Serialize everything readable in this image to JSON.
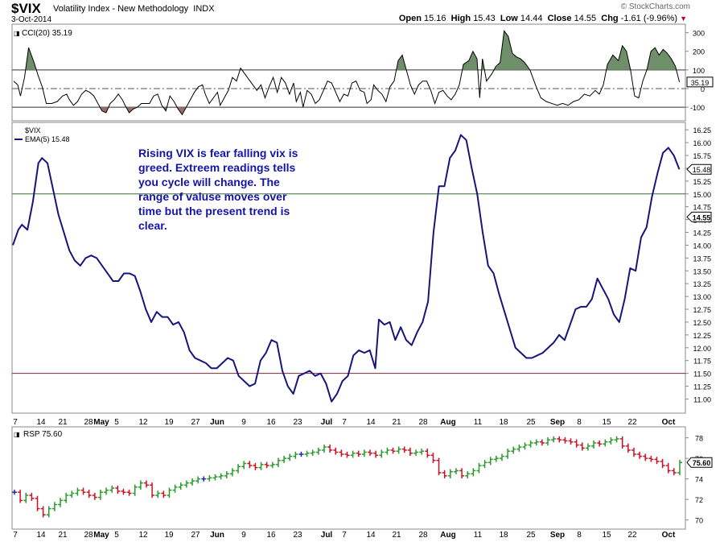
{
  "header": {
    "symbol": "$VIX",
    "name": "Volatility Index - New Methodology",
    "exchange": "INDX",
    "date": "3-Oct-2014",
    "brand": "© StockCharts.com",
    "open_label": "Open",
    "open": "15.16",
    "high_label": "High",
    "high": "15.43",
    "low_label": "Low",
    "low": "14.44",
    "close_label": "Close",
    "close": "14.55",
    "chg_label": "Chg",
    "chg": "-1.61 (-9.96%)",
    "chg_color": "#c0002a"
  },
  "annotation": "Rising VIX is fear falling vix is greed. Extreem readings tells you cycle will change. The range of valuse moves over time but the present trend is clear.",
  "x_axis": {
    "ticks": [
      "7",
      "14",
      "21",
      "28",
      "May",
      "5",
      "12",
      "19",
      "27",
      "Jun",
      "9",
      "16",
      "23",
      "Jul",
      "7",
      "14",
      "21",
      "28",
      "Aug",
      "11",
      "18",
      "25",
      "Sep",
      "8",
      "15",
      "22",
      "Oct"
    ],
    "bold": [
      "May",
      "Jun",
      "Jul",
      "Aug",
      "Sep",
      "Oct"
    ]
  },
  "chart_data": [
    {
      "type": "line",
      "panel": "CCI",
      "title": "CCI(20) 35.19",
      "series": [
        {
          "name": "CCI(20)",
          "color": "#000000"
        }
      ],
      "ylim": [
        -130,
        320
      ],
      "yticks": [
        300,
        200,
        100,
        0,
        -100
      ],
      "upper_line": 100,
      "lower_line": -100,
      "last_value": "35.19",
      "fill_above_color": "#6e8f6a",
      "fill_below_color": "#9a6e6e",
      "values": [
        [
          0,
          40
        ],
        [
          3,
          20
        ],
        [
          5,
          -40
        ],
        [
          8,
          60
        ],
        [
          11,
          220
        ],
        [
          15,
          140
        ],
        [
          18,
          70
        ],
        [
          21,
          10
        ],
        [
          24,
          -80
        ],
        [
          28,
          -80
        ],
        [
          32,
          -70
        ],
        [
          36,
          -40
        ],
        [
          39,
          -30
        ],
        [
          41,
          -60
        ],
        [
          44,
          -90
        ],
        [
          47,
          -70
        ],
        [
          50,
          -30
        ],
        [
          53,
          -10
        ],
        [
          56,
          -20
        ],
        [
          59,
          -40
        ],
        [
          62,
          -80
        ],
        [
          65,
          -120
        ],
        [
          68,
          -130
        ],
        [
          71,
          -80
        ],
        [
          74,
          -60
        ],
        [
          77,
          -30
        ],
        [
          80,
          -60
        ],
        [
          82,
          -90
        ],
        [
          85,
          -130
        ],
        [
          88,
          -110
        ],
        [
          91,
          -100
        ],
        [
          94,
          -80
        ],
        [
          97,
          -80
        ],
        [
          100,
          -80
        ],
        [
          103,
          -40
        ],
        [
          106,
          -30
        ],
        [
          109,
          -90
        ],
        [
          112,
          -120
        ],
        [
          115,
          -40
        ],
        [
          118,
          -70
        ],
        [
          121,
          -110
        ],
        [
          124,
          -140
        ],
        [
          127,
          -100
        ],
        [
          130,
          -60
        ],
        [
          133,
          -20
        ],
        [
          136,
          10
        ],
        [
          139,
          20
        ],
        [
          141,
          -30
        ],
        [
          144,
          -80
        ],
        [
          147,
          -50
        ],
        [
          150,
          -20
        ],
        [
          152,
          -90
        ],
        [
          155,
          -50
        ],
        [
          158,
          -10
        ],
        [
          161,
          60
        ],
        [
          164,
          40
        ],
        [
          167,
          110
        ],
        [
          170,
          80
        ],
        [
          173,
          50
        ],
        [
          176,
          20
        ],
        [
          179,
          -10
        ],
        [
          182,
          20
        ],
        [
          185,
          -50
        ],
        [
          188,
          10
        ],
        [
          191,
          60
        ],
        [
          194,
          -20
        ],
        [
          197,
          60
        ],
        [
          200,
          30
        ],
        [
          203,
          -30
        ],
        [
          206,
          30
        ],
        [
          208,
          -70
        ],
        [
          211,
          -20
        ],
        [
          213,
          -100
        ],
        [
          216,
          -10
        ],
        [
          219,
          -30
        ],
        [
          222,
          -80
        ],
        [
          225,
          -60
        ],
        [
          228,
          -10
        ],
        [
          231,
          40
        ],
        [
          234,
          30
        ],
        [
          237,
          -20
        ],
        [
          240,
          -70
        ],
        [
          243,
          -30
        ],
        [
          246,
          -40
        ],
        [
          249,
          30
        ],
        [
          252,
          40
        ],
        [
          255,
          -10
        ],
        [
          258,
          -20
        ],
        [
          260,
          -80
        ],
        [
          263,
          -60
        ],
        [
          265,
          20
        ],
        [
          268,
          -10
        ],
        [
          271,
          -30
        ],
        [
          274,
          -70
        ],
        [
          277,
          10
        ],
        [
          280,
          40
        ],
        [
          283,
          150
        ],
        [
          286,
          180
        ],
        [
          289,
          100
        ],
        [
          292,
          20
        ],
        [
          295,
          -30
        ],
        [
          298,
          20
        ],
        [
          301,
          40
        ],
        [
          304,
          40
        ],
        [
          307,
          -10
        ],
        [
          310,
          -80
        ],
        [
          313,
          -20
        ],
        [
          316,
          -10
        ],
        [
          319,
          -40
        ],
        [
          322,
          -60
        ],
        [
          325,
          -30
        ],
        [
          328,
          20
        ],
        [
          331,
          130
        ],
        [
          335,
          150
        ],
        [
          338,
          200
        ],
        [
          341,
          160
        ],
        [
          343,
          -50
        ],
        [
          345,
          160
        ],
        [
          348,
          40
        ],
        [
          352,
          80
        ],
        [
          355,
          120
        ],
        [
          358,
          140
        ],
        [
          361,
          310
        ],
        [
          364,
          280
        ],
        [
          367,
          190
        ],
        [
          370,
          170
        ],
        [
          373,
          160
        ],
        [
          376,
          140
        ],
        [
          380,
          100
        ],
        [
          384,
          20
        ],
        [
          388,
          -50
        ],
        [
          392,
          -70
        ],
        [
          396,
          -80
        ],
        [
          400,
          -90
        ],
        [
          404,
          -80
        ],
        [
          408,
          -90
        ],
        [
          412,
          -70
        ],
        [
          416,
          -60
        ],
        [
          420,
          -30
        ],
        [
          424,
          -40
        ],
        [
          428,
          -10
        ],
        [
          431,
          -30
        ],
        [
          434,
          20
        ],
        [
          437,
          130
        ],
        [
          441,
          180
        ],
        [
          445,
          150
        ],
        [
          448,
          230
        ],
        [
          451,
          200
        ],
        [
          454,
          100
        ],
        [
          457,
          -40
        ],
        [
          460,
          -50
        ],
        [
          463,
          40
        ],
        [
          466,
          100
        ],
        [
          469,
          200
        ],
        [
          472,
          220
        ],
        [
          475,
          180
        ],
        [
          478,
          210
        ],
        [
          481,
          190
        ],
        [
          484,
          160
        ],
        [
          487,
          120
        ],
        [
          490,
          35
        ]
      ]
    },
    {
      "type": "line",
      "panel": "Price",
      "title": "$VIX",
      "series": [
        {
          "name": "EMA(5) 15.48",
          "color": "#15157a"
        }
      ],
      "ylim": [
        10.85,
        16.3
      ],
      "yticks": [
        16.25,
        16.0,
        15.75,
        15.5,
        15.25,
        15.0,
        14.75,
        14.5,
        14.25,
        14.0,
        13.75,
        13.5,
        13.25,
        13.0,
        12.75,
        12.5,
        12.25,
        12.0,
        11.75,
        11.5,
        11.25,
        11.0
      ],
      "hlines": [
        {
          "value": 15.0,
          "color": "#3b6e3b"
        },
        {
          "value": 11.5,
          "color": "#8a2435"
        }
      ],
      "last_ema": "15.48",
      "last_close": "14.55",
      "values": [
        [
          0,
          14.0
        ],
        [
          3,
          14.3
        ],
        [
          5,
          14.4
        ],
        [
          8,
          14.3
        ],
        [
          11,
          14.85
        ],
        [
          14,
          15.6
        ],
        [
          16,
          15.7
        ],
        [
          19,
          15.6
        ],
        [
          22,
          15.1
        ],
        [
          25,
          14.6
        ],
        [
          28,
          14.25
        ],
        [
          31,
          13.9
        ],
        [
          34,
          13.7
        ],
        [
          37,
          13.6
        ],
        [
          40,
          13.75
        ],
        [
          43,
          13.8
        ],
        [
          46,
          13.75
        ],
        [
          49,
          13.6
        ],
        [
          52,
          13.45
        ],
        [
          55,
          13.3
        ],
        [
          58,
          13.3
        ],
        [
          61,
          13.45
        ],
        [
          64,
          13.45
        ],
        [
          67,
          13.4
        ],
        [
          70,
          13.1
        ],
        [
          73,
          12.75
        ],
        [
          76,
          12.5
        ],
        [
          79,
          12.7
        ],
        [
          82,
          12.6
        ],
        [
          85,
          12.6
        ],
        [
          88,
          12.45
        ],
        [
          91,
          12.5
        ],
        [
          94,
          12.3
        ],
        [
          97,
          11.95
        ],
        [
          100,
          11.8
        ],
        [
          103,
          11.75
        ],
        [
          106,
          11.7
        ],
        [
          109,
          11.6
        ],
        [
          112,
          11.6
        ],
        [
          115,
          11.7
        ],
        [
          118,
          11.8
        ],
        [
          121,
          11.75
        ],
        [
          124,
          11.45
        ],
        [
          127,
          11.35
        ],
        [
          130,
          11.25
        ],
        [
          133,
          11.3
        ],
        [
          136,
          11.75
        ],
        [
          139,
          11.9
        ],
        [
          142,
          12.15
        ],
        [
          145,
          12.1
        ],
        [
          148,
          11.55
        ],
        [
          151,
          11.25
        ],
        [
          154,
          11.1
        ],
        [
          157,
          11.45
        ],
        [
          160,
          11.5
        ],
        [
          163,
          11.55
        ],
        [
          166,
          11.45
        ],
        [
          169,
          11.5
        ],
        [
          172,
          11.3
        ],
        [
          175,
          10.95
        ],
        [
          178,
          11.1
        ],
        [
          181,
          11.35
        ],
        [
          184,
          11.45
        ],
        [
          187,
          11.85
        ],
        [
          190,
          11.95
        ],
        [
          193,
          11.9
        ],
        [
          196,
          11.95
        ],
        [
          199,
          11.6
        ],
        [
          201,
          12.55
        ],
        [
          204,
          12.45
        ],
        [
          207,
          12.5
        ],
        [
          210,
          12.15
        ],
        [
          213,
          12.4
        ],
        [
          216,
          12.15
        ],
        [
          219,
          12.05
        ],
        [
          222,
          12.3
        ],
        [
          225,
          12.5
        ],
        [
          228,
          12.9
        ],
        [
          231,
          14.25
        ],
        [
          234,
          15.15
        ],
        [
          237,
          15.15
        ],
        [
          240,
          15.7
        ],
        [
          243,
          15.85
        ],
        [
          246,
          16.15
        ],
        [
          249,
          16.05
        ],
        [
          252,
          15.5
        ],
        [
          255,
          15.0
        ],
        [
          258,
          14.25
        ],
        [
          261,
          13.6
        ],
        [
          264,
          13.45
        ],
        [
          267,
          13.05
        ],
        [
          270,
          12.7
        ],
        [
          273,
          12.35
        ],
        [
          276,
          12.0
        ],
        [
          279,
          11.9
        ],
        [
          282,
          11.8
        ],
        [
          285,
          11.8
        ],
        [
          288,
          11.85
        ],
        [
          291,
          11.9
        ],
        [
          294,
          12.0
        ],
        [
          297,
          12.1
        ],
        [
          300,
          12.25
        ],
        [
          303,
          12.15
        ],
        [
          306,
          12.45
        ],
        [
          309,
          12.75
        ],
        [
          312,
          12.8
        ],
        [
          315,
          12.8
        ],
        [
          318,
          12.95
        ],
        [
          321,
          13.35
        ],
        [
          324,
          13.15
        ],
        [
          327,
          12.95
        ],
        [
          330,
          12.65
        ],
        [
          333,
          12.5
        ],
        [
          336,
          12.95
        ],
        [
          339,
          13.55
        ],
        [
          342,
          13.5
        ],
        [
          345,
          14.15
        ],
        [
          348,
          14.35
        ],
        [
          351,
          14.95
        ],
        [
          354,
          15.4
        ],
        [
          357,
          15.8
        ],
        [
          360,
          15.9
        ],
        [
          363,
          15.75
        ],
        [
          366,
          15.48
        ]
      ]
    },
    {
      "type": "line",
      "panel": "RSP",
      "title": "RSP 75.60",
      "ylim": [
        69.5,
        78.6
      ],
      "yticks": [
        78,
        76,
        74,
        72,
        70
      ],
      "last_value": "75.60",
      "bar_colors": {
        "up": "#2a9a2a",
        "down": "#cc1122",
        "flat": "#2222bb"
      },
      "values": [
        72.7,
        71.9,
        72.4,
        72.1,
        71.1,
        70.5,
        71.1,
        71.5,
        71.9,
        72.4,
        72.6,
        72.9,
        72.7,
        72.4,
        72.2,
        72.7,
        72.9,
        73.1,
        72.8,
        72.7,
        72.6,
        73.2,
        73.6,
        73.4,
        72.4,
        72.6,
        72.4,
        72.9,
        73.2,
        73.4,
        73.6,
        73.8,
        74.0,
        74.0,
        74.1,
        74.2,
        74.3,
        74.5,
        74.8,
        75.2,
        75.5,
        75.3,
        75.1,
        75.4,
        75.3,
        75.4,
        75.8,
        76.0,
        76.2,
        76.4,
        76.4,
        76.5,
        76.6,
        76.8,
        77.1,
        76.8,
        76.6,
        76.4,
        76.3,
        76.5,
        76.4,
        76.6,
        76.5,
        76.3,
        76.6,
        76.8,
        76.7,
        76.9,
        76.8,
        76.5,
        76.6,
        76.7,
        76.3,
        75.8,
        74.6,
        74.3,
        74.7,
        74.8,
        74.3,
        74.5,
        74.8,
        75.3,
        75.6,
        75.9,
        76.0,
        76.2,
        76.7,
        76.9,
        77.1,
        77.3,
        77.5,
        77.6,
        77.5,
        77.8,
        77.9,
        77.8,
        77.7,
        77.6,
        77.3,
        77.0,
        77.2,
        77.5,
        77.4,
        77.6,
        77.8,
        77.9,
        77.2,
        76.8,
        76.4,
        76.2,
        76.0,
        75.9,
        75.7,
        75.3,
        74.8,
        74.6,
        75.6
      ]
    }
  ]
}
